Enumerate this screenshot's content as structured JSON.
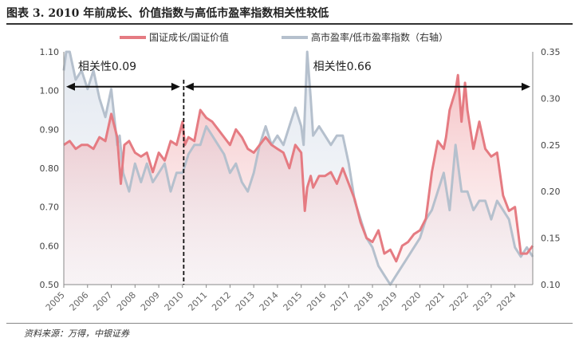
{
  "figure": {
    "title": "图表 3. 2010 年前成长、价值指数与高低市盈率指数相关性较低",
    "source": "资料来源：万得，中银证券"
  },
  "chart_data": {
    "type": "line",
    "x_start": 2005.0,
    "x_end": 2024.75,
    "series": [
      {
        "name": "国证成长/国证价值",
        "axis": "left",
        "color": "#e57b82",
        "fill": "area-gradient",
        "x": [
          2005.0,
          2005.25,
          2005.5,
          2005.75,
          2006.0,
          2006.25,
          2006.5,
          2006.75,
          2007.0,
          2007.25,
          2007.4,
          2007.55,
          2007.75,
          2008.0,
          2008.25,
          2008.5,
          2008.75,
          2009.0,
          2009.25,
          2009.5,
          2009.75,
          2010.0,
          2010.1,
          2010.25,
          2010.5,
          2010.75,
          2011.0,
          2011.25,
          2011.5,
          2011.75,
          2012.0,
          2012.25,
          2012.5,
          2012.75,
          2013.0,
          2013.25,
          2013.5,
          2013.75,
          2014.0,
          2014.25,
          2014.5,
          2014.75,
          2015.0,
          2015.15,
          2015.25,
          2015.4,
          2015.5,
          2015.75,
          2016.0,
          2016.25,
          2016.5,
          2016.75,
          2017.0,
          2017.25,
          2017.5,
          2017.75,
          2018.0,
          2018.25,
          2018.5,
          2018.75,
          2019.0,
          2019.25,
          2019.5,
          2019.75,
          2020.0,
          2020.25,
          2020.5,
          2020.75,
          2021.0,
          2021.1,
          2021.25,
          2021.5,
          2021.6,
          2021.75,
          2021.9,
          2022.0,
          2022.25,
          2022.5,
          2022.75,
          2023.0,
          2023.25,
          2023.5,
          2023.75,
          2024.0,
          2024.25,
          2024.5,
          2024.75
        ],
        "values": [
          0.86,
          0.87,
          0.85,
          0.86,
          0.86,
          0.85,
          0.88,
          0.87,
          0.94,
          0.88,
          0.76,
          0.86,
          0.87,
          0.84,
          0.83,
          0.84,
          0.79,
          0.84,
          0.82,
          0.87,
          0.86,
          0.92,
          0.86,
          0.88,
          0.87,
          0.95,
          0.93,
          0.92,
          0.9,
          0.88,
          0.86,
          0.9,
          0.88,
          0.85,
          0.84,
          0.86,
          0.88,
          0.86,
          0.85,
          0.84,
          0.8,
          0.86,
          0.84,
          0.69,
          0.75,
          0.78,
          0.75,
          0.78,
          0.78,
          0.79,
          0.76,
          0.8,
          0.76,
          0.72,
          0.66,
          0.62,
          0.61,
          0.64,
          0.58,
          0.59,
          0.56,
          0.6,
          0.61,
          0.63,
          0.64,
          0.67,
          0.79,
          0.87,
          0.85,
          0.88,
          0.95,
          1.0,
          1.04,
          0.92,
          1.02,
          0.95,
          0.85,
          0.92,
          0.85,
          0.83,
          0.84,
          0.73,
          0.69,
          0.7,
          0.58,
          0.58,
          0.6
        ]
      },
      {
        "name": "高市盈率/低市盈率指数（右轴）",
        "axis": "right",
        "color": "#b5c0cd",
        "fill": "area-light",
        "x": [
          2005.0,
          2005.1,
          2005.25,
          2005.5,
          2005.75,
          2006.0,
          2006.25,
          2006.5,
          2006.75,
          2007.0,
          2007.25,
          2007.35,
          2007.5,
          2007.75,
          2008.0,
          2008.25,
          2008.5,
          2008.75,
          2009.0,
          2009.25,
          2009.5,
          2009.75,
          2010.0,
          2010.25,
          2010.5,
          2010.75,
          2011.0,
          2011.25,
          2011.5,
          2011.75,
          2012.0,
          2012.25,
          2012.5,
          2012.75,
          2013.0,
          2013.25,
          2013.5,
          2013.75,
          2014.0,
          2014.25,
          2014.5,
          2014.75,
          2015.0,
          2015.1,
          2015.25,
          2015.4,
          2015.5,
          2015.75,
          2016.0,
          2016.25,
          2016.5,
          2016.75,
          2017.0,
          2017.25,
          2017.5,
          2017.75,
          2018.0,
          2018.25,
          2018.5,
          2018.75,
          2019.0,
          2019.25,
          2019.5,
          2019.75,
          2020.0,
          2020.25,
          2020.5,
          2020.75,
          2021.0,
          2021.25,
          2021.5,
          2021.75,
          2022.0,
          2022.25,
          2022.5,
          2022.75,
          2023.0,
          2023.25,
          2023.5,
          2023.75,
          2024.0,
          2024.25,
          2024.5,
          2024.75
        ],
        "values": [
          0.33,
          0.36,
          0.355,
          0.32,
          0.33,
          0.31,
          0.33,
          0.3,
          0.28,
          0.31,
          0.25,
          0.26,
          0.22,
          0.2,
          0.23,
          0.21,
          0.23,
          0.21,
          0.22,
          0.23,
          0.2,
          0.22,
          0.22,
          0.24,
          0.25,
          0.25,
          0.27,
          0.26,
          0.25,
          0.24,
          0.22,
          0.23,
          0.21,
          0.2,
          0.22,
          0.25,
          0.27,
          0.25,
          0.26,
          0.25,
          0.27,
          0.29,
          0.27,
          0.25,
          0.35,
          0.3,
          0.26,
          0.27,
          0.26,
          0.25,
          0.26,
          0.26,
          0.23,
          0.19,
          0.17,
          0.15,
          0.14,
          0.12,
          0.11,
          0.1,
          0.11,
          0.12,
          0.13,
          0.14,
          0.15,
          0.17,
          0.18,
          0.2,
          0.22,
          0.18,
          0.25,
          0.2,
          0.2,
          0.18,
          0.19,
          0.19,
          0.17,
          0.19,
          0.18,
          0.17,
          0.14,
          0.13,
          0.14,
          0.13
        ]
      }
    ],
    "left_axis": {
      "min": 0.5,
      "max": 1.1,
      "ticks": [
        "0.50",
        "0.60",
        "0.70",
        "0.80",
        "0.90",
        "1.00",
        "1.10"
      ]
    },
    "right_axis": {
      "min": 0.1,
      "max": 0.35,
      "ticks": [
        "0.10",
        "0.15",
        "0.20",
        "0.25",
        "0.30",
        "0.35"
      ]
    },
    "x_ticks": [
      "2005",
      "2006",
      "2007",
      "2008",
      "2009",
      "2010",
      "2011",
      "2012",
      "2013",
      "2014",
      "2015",
      "2016",
      "2017",
      "2018",
      "2019",
      "2020",
      "2021",
      "2022",
      "2023",
      "2024"
    ],
    "legend_position": "top-center",
    "grid": false,
    "annotations": [
      {
        "text": "相关性0.09",
        "from": 2005.0,
        "to": 2010.0,
        "y": 1.01
      },
      {
        "text": "相关性0.66",
        "from": 2010.0,
        "to": 2024.75,
        "y": 1.01
      }
    ],
    "divider_x": 2010.05
  }
}
